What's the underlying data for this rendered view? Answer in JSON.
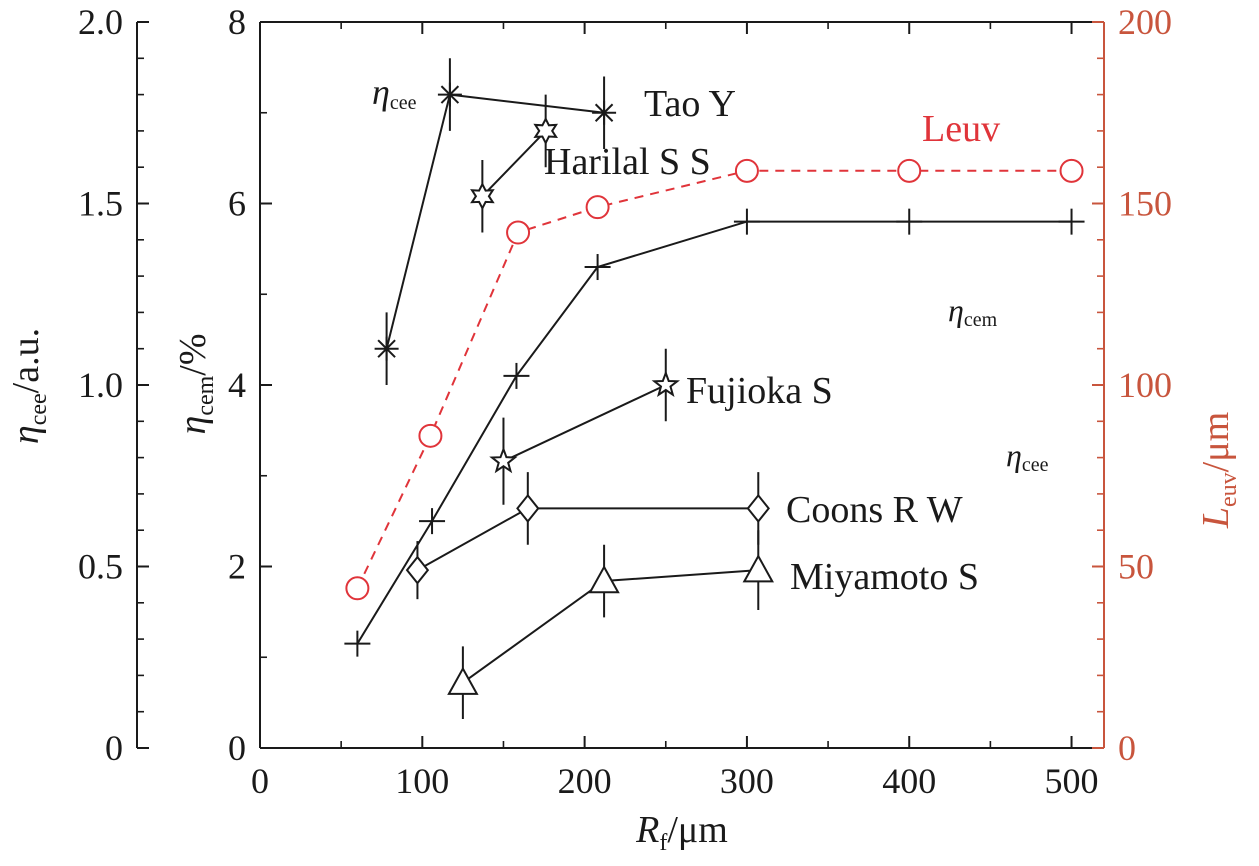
{
  "chart_data": {
    "type": "line",
    "x_axis": {
      "label_main": "R",
      "label_sub": "f",
      "label_unit": "/μm",
      "range": [
        0,
        520
      ],
      "ticks": [
        0,
        100,
        200,
        300,
        400,
        500
      ]
    },
    "y_axes": {
      "cee": {
        "label_main": "η",
        "label_sub": "cee",
        "label_unit": "/a.u.",
        "range": [
          0,
          2.0
        ],
        "ticks": [
          "0",
          "0.5",
          "1.0",
          "1.5",
          "2.0"
        ],
        "tick_values": [
          0,
          0.5,
          1.0,
          1.5,
          2.0
        ]
      },
      "cem": {
        "label_main": "η",
        "label_sub": "cem",
        "label_unit": "/%",
        "range": [
          0,
          8
        ],
        "ticks": [
          "0",
          "2",
          "4",
          "6",
          "8"
        ],
        "tick_values": [
          0,
          2,
          4,
          6,
          8
        ]
      },
      "euv": {
        "label_main": "L",
        "label_sub": "euv",
        "label_unit": "/μm",
        "range": [
          0,
          200
        ],
        "ticks": [
          "0",
          "50",
          "100",
          "150",
          "200"
        ],
        "tick_values": [
          0,
          50,
          100,
          150,
          200
        ],
        "color": "#c8553d"
      }
    },
    "series": [
      {
        "name": "Tao Y",
        "axis": "cee",
        "marker": "asterisk",
        "dash": false,
        "color": "#1a1a1a",
        "points": [
          {
            "x": 78,
            "y": 1.1,
            "err": 0.1
          },
          {
            "x": 117,
            "y": 1.8,
            "err": 0.1
          },
          {
            "x": 212,
            "y": 1.75,
            "err": 0.1
          }
        ]
      },
      {
        "name": "Harilal S S",
        "axis": "cee",
        "marker": "hexstar",
        "dash": false,
        "color": "#1a1a1a",
        "points": [
          {
            "x": 137,
            "y": 1.52,
            "err": 0.1
          },
          {
            "x": 176,
            "y": 1.7,
            "err": 0.1
          }
        ]
      },
      {
        "name": "",
        "axis": "cem",
        "marker": "plus",
        "dash": false,
        "color": "#1a1a1a",
        "points": [
          {
            "x": 60,
            "y": 1.15
          },
          {
            "x": 106,
            "y": 2.5
          },
          {
            "x": 158,
            "y": 4.1
          },
          {
            "x": 208,
            "y": 5.3
          },
          {
            "x": 300,
            "y": 5.8
          },
          {
            "x": 400,
            "y": 5.8
          },
          {
            "x": 500,
            "y": 5.8
          }
        ]
      },
      {
        "name": "Leuv",
        "axis": "euv",
        "marker": "circle",
        "dash": true,
        "color": "#e0343a",
        "points": [
          {
            "x": 60,
            "y": 44
          },
          {
            "x": 105,
            "y": 86
          },
          {
            "x": 159,
            "y": 142
          },
          {
            "x": 208,
            "y": 149
          },
          {
            "x": 300,
            "y": 159
          },
          {
            "x": 400,
            "y": 159
          },
          {
            "x": 500,
            "y": 159
          }
        ]
      },
      {
        "name": "Fujioka S",
        "axis": "cee",
        "marker": "star5",
        "dash": false,
        "color": "#1a1a1a",
        "points": [
          {
            "x": 150,
            "y": 0.79,
            "err": 0.12
          },
          {
            "x": 250,
            "y": 1.0,
            "err": 0.1
          }
        ]
      },
      {
        "name": "Coons R W",
        "axis": "cee",
        "marker": "diamond",
        "dash": false,
        "color": "#1a1a1a",
        "points": [
          {
            "x": 97,
            "y": 0.49,
            "err": 0.08
          },
          {
            "x": 165,
            "y": 0.66,
            "err": 0.1
          },
          {
            "x": 307,
            "y": 0.66,
            "err": 0.1
          }
        ]
      },
      {
        "name": "Miyamoto S",
        "axis": "cee",
        "marker": "triangle",
        "dash": false,
        "color": "#1a1a1a",
        "points": [
          {
            "x": 125,
            "y": 0.18,
            "err": 0.1
          },
          {
            "x": 212,
            "y": 0.46,
            "err": 0.1
          },
          {
            "x": 307,
            "y": 0.49,
            "err": 0.11
          }
        ]
      }
    ],
    "annotations": [
      {
        "id": "eta-cee-top",
        "main": "η",
        "sub": "cee"
      },
      {
        "id": "eta-cem-right",
        "main": "η",
        "sub": "cem"
      },
      {
        "id": "eta-cee-right",
        "main": "η",
        "sub": "cee"
      }
    ]
  }
}
